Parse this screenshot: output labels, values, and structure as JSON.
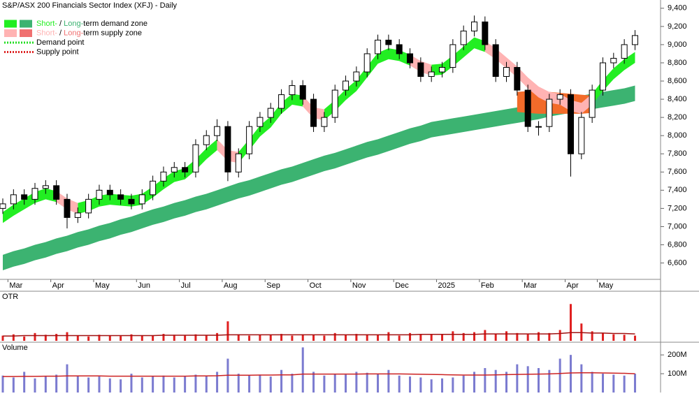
{
  "chart_data": [
    {
      "type": "candlestick",
      "title": "S&P/ASX 200 Financials Sector Index (XFJ) - Daily",
      "categories": [
        null,
        "Mar",
        null,
        null,
        null,
        "Apr",
        null,
        null,
        null,
        "May",
        null,
        null,
        null,
        "Jun",
        null,
        null,
        null,
        "Jul",
        null,
        null,
        null,
        "Aug",
        null,
        null,
        null,
        "Sep",
        null,
        null,
        null,
        "Oct",
        null,
        null,
        null,
        "Nov",
        null,
        null,
        null,
        "Dec",
        null,
        null,
        null,
        "2025",
        null,
        null,
        null,
        "Feb",
        null,
        null,
        null,
        "Mar",
        null,
        null,
        null,
        "Apr",
        null,
        null,
        "May",
        null,
        null,
        null
      ],
      "open": [
        7200,
        7250,
        7350,
        7300,
        7420,
        7450,
        7300,
        7100,
        7150,
        7300,
        7400,
        7350,
        7300,
        7250,
        7350,
        7500,
        7600,
        7650,
        7600,
        7900,
        8000,
        8100,
        7600,
        7800,
        8100,
        8200,
        8300,
        8450,
        8550,
        8400,
        8100,
        8200,
        8500,
        8600,
        8700,
        8900,
        9050,
        9000,
        8900,
        8800,
        8650,
        8700,
        8750,
        9000,
        9150,
        9250,
        9000,
        8650,
        8750,
        8500,
        8100,
        8100,
        8400,
        8450,
        7800,
        8200,
        8500,
        8800,
        8850,
        9000
      ],
      "high": [
        7310,
        7410,
        7410,
        7480,
        7510,
        7510,
        7360,
        7210,
        7360,
        7460,
        7460,
        7410,
        7360,
        7410,
        7560,
        7660,
        7710,
        7710,
        7960,
        8060,
        8180,
        8160,
        7860,
        8160,
        8260,
        8360,
        8510,
        8610,
        8610,
        8460,
        8260,
        8560,
        8660,
        8760,
        8960,
        9110,
        9110,
        9060,
        8960,
        8860,
        8760,
        8810,
        9060,
        9210,
        9320,
        9310,
        9060,
        8810,
        8810,
        8560,
        8160,
        8460,
        8510,
        8510,
        8260,
        8560,
        8860,
        8910,
        9060,
        9160
      ],
      "low": [
        7140,
        7190,
        7240,
        7240,
        7360,
        7240,
        6980,
        7040,
        7090,
        7240,
        7290,
        7240,
        7190,
        7190,
        7290,
        7440,
        7540,
        7540,
        7540,
        7840,
        7940,
        7500,
        7540,
        7740,
        8040,
        8140,
        8240,
        8390,
        8340,
        8040,
        8040,
        8140,
        8440,
        8540,
        8640,
        8840,
        8940,
        8840,
        8740,
        8590,
        8590,
        8640,
        8690,
        8940,
        9090,
        8940,
        8590,
        8590,
        8440,
        8040,
        8000,
        8040,
        8340,
        7550,
        7740,
        8140,
        8440,
        8740,
        8790,
        8940
      ],
      "close": [
        7250,
        7350,
        7300,
        7420,
        7450,
        7300,
        7100,
        7150,
        7300,
        7400,
        7350,
        7300,
        7250,
        7350,
        7500,
        7600,
        7650,
        7600,
        7900,
        8000,
        8100,
        7600,
        7800,
        8100,
        8200,
        8300,
        8450,
        8550,
        8400,
        8100,
        8200,
        8500,
        8600,
        8700,
        8900,
        9050,
        9000,
        8900,
        8800,
        8650,
        8700,
        8750,
        9000,
        9150,
        9250,
        9000,
        8650,
        8750,
        8500,
        8100,
        8100,
        8400,
        8450,
        7800,
        8200,
        8500,
        8800,
        8850,
        9000,
        9100
      ],
      "zones": [
        {
          "color": "#3cb371",
          "upper": [
            6690,
            6730,
            6760,
            6800,
            6830,
            6870,
            6900,
            6940,
            6970,
            7010,
            7040,
            7080,
            7110,
            7150,
            7190,
            7220,
            7260,
            7290,
            7330,
            7360,
            7400,
            7440,
            7480,
            7510,
            7550,
            7590,
            7630,
            7660,
            7700,
            7740,
            7780,
            7810,
            7850,
            7890,
            7930,
            7960,
            8000,
            8040,
            8080,
            8110,
            8150,
            8170,
            8190,
            8210,
            8230,
            8250,
            8270,
            8290,
            8310,
            8330,
            8350,
            8380,
            8400,
            8420,
            8440,
            8460,
            8480,
            8500,
            8520,
            8550
          ],
          "lower": [
            6520,
            6560,
            6590,
            6630,
            6660,
            6700,
            6730,
            6770,
            6800,
            6840,
            6870,
            6910,
            6940,
            6980,
            7020,
            7050,
            7090,
            7120,
            7160,
            7190,
            7230,
            7270,
            7310,
            7340,
            7380,
            7420,
            7460,
            7490,
            7530,
            7570,
            7610,
            7640,
            7680,
            7720,
            7760,
            7790,
            7830,
            7870,
            7910,
            7940,
            7980,
            8000,
            8020,
            8040,
            8060,
            8080,
            8100,
            8120,
            8140,
            8160,
            8180,
            8210,
            8230,
            8250,
            8270,
            8290,
            8310,
            8330,
            8350,
            8380
          ]
        },
        {
          "color": "#f26b2a",
          "upper": [
            null,
            null,
            null,
            null,
            null,
            null,
            null,
            null,
            null,
            null,
            null,
            null,
            null,
            null,
            null,
            null,
            null,
            null,
            null,
            null,
            null,
            null,
            null,
            null,
            null,
            null,
            null,
            null,
            null,
            null,
            null,
            null,
            null,
            null,
            null,
            null,
            null,
            null,
            null,
            null,
            null,
            null,
            null,
            null,
            null,
            null,
            null,
            null,
            8480,
            8490,
            8480,
            8480,
            8470,
            8460,
            8450,
            8440,
            null,
            null,
            null,
            null
          ],
          "lower": [
            null,
            null,
            null,
            null,
            null,
            null,
            null,
            null,
            null,
            null,
            null,
            null,
            null,
            null,
            null,
            null,
            null,
            null,
            null,
            null,
            null,
            null,
            null,
            null,
            null,
            null,
            null,
            null,
            null,
            null,
            null,
            null,
            null,
            null,
            null,
            null,
            null,
            null,
            null,
            null,
            null,
            null,
            null,
            null,
            null,
            null,
            null,
            null,
            8260,
            8250,
            8240,
            8240,
            8240,
            8240,
            8240,
            8250,
            null,
            null,
            null,
            null
          ]
        },
        {
          "color": "#22ee22",
          "upper": [
            7160,
            7240,
            7310,
            7380,
            7420,
            7390,
            null,
            7260,
            7290,
            7340,
            7360,
            7350,
            7340,
            7360,
            7440,
            7530,
            7610,
            7640,
            7740,
            7860,
            7960,
            null,
            7820,
            7960,
            8110,
            8210,
            8360,
            8460,
            8440,
            null,
            8290,
            8390,
            8510,
            8610,
            8760,
            8910,
            8960,
            8940,
            8890,
            null,
            8780,
            8790,
            8880,
            8980,
            9080,
            9040,
            null,
            null,
            null,
            null,
            null,
            null,
            null,
            null,
            null,
            8460,
            8610,
            8740,
            8840,
            8920
          ],
          "lower": [
            7040,
            7120,
            7190,
            7260,
            7300,
            7270,
            null,
            7140,
            7170,
            7220,
            7240,
            7230,
            7220,
            7240,
            7320,
            7410,
            7490,
            7520,
            7620,
            7740,
            7840,
            null,
            7700,
            7840,
            7990,
            8090,
            8240,
            8340,
            8320,
            null,
            8170,
            8270,
            8390,
            8490,
            8640,
            8790,
            8840,
            8820,
            8770,
            null,
            8660,
            8670,
            8760,
            8860,
            8960,
            8920,
            null,
            null,
            null,
            null,
            null,
            null,
            null,
            null,
            null,
            8340,
            8490,
            8620,
            8720,
            8800
          ]
        },
        {
          "color": "#ffb3b3",
          "upper": [
            null,
            null,
            null,
            null,
            null,
            7390,
            7310,
            7260,
            null,
            null,
            null,
            null,
            null,
            null,
            null,
            null,
            null,
            null,
            null,
            null,
            7960,
            7840,
            7820,
            null,
            null,
            null,
            null,
            null,
            8440,
            8310,
            8290,
            null,
            null,
            null,
            null,
            null,
            null,
            null,
            8890,
            8820,
            8780,
            null,
            null,
            null,
            null,
            9040,
            8960,
            8860,
            8760,
            8640,
            8540,
            8480,
            8460,
            8390,
            8360,
            8460,
            null,
            null,
            null,
            null
          ],
          "lower": [
            null,
            null,
            null,
            null,
            null,
            7270,
            7190,
            7140,
            null,
            null,
            null,
            null,
            null,
            null,
            null,
            null,
            null,
            null,
            null,
            null,
            7840,
            7720,
            7700,
            null,
            null,
            null,
            null,
            null,
            8320,
            8190,
            8170,
            null,
            null,
            null,
            null,
            null,
            null,
            null,
            8770,
            8700,
            8660,
            null,
            null,
            null,
            null,
            8920,
            8840,
            8740,
            8640,
            8520,
            8420,
            8360,
            8340,
            8270,
            8240,
            8340,
            null,
            null,
            null,
            null
          ]
        }
      ],
      "legend": [
        {
          "swatches": [
            "#22ee22",
            "#3cb371"
          ],
          "parts": [
            "Short-",
            " / ",
            "Long-",
            "term demand zone"
          ]
        },
        {
          "swatches": [
            "#ffb3b3",
            "#f07070"
          ],
          "parts": [
            "Short-",
            " / ",
            "Long-",
            "term supply zone"
          ]
        },
        {
          "line": "#22dd22",
          "parts": [
            "Demand point"
          ]
        },
        {
          "line": "#dd2222",
          "parts": [
            "Supply point"
          ]
        }
      ],
      "ylim": [
        6420,
        9460
      ],
      "yticks": [
        {
          "value": 6600,
          "label": "6,600"
        },
        {
          "value": 6800,
          "label": "6,800"
        },
        {
          "value": 7000,
          "label": "7,000"
        },
        {
          "value": 7200,
          "label": "7,200"
        },
        {
          "value": 7400,
          "label": "7,400"
        },
        {
          "value": 7600,
          "label": "7,600"
        },
        {
          "value": 7800,
          "label": "7,800"
        },
        {
          "value": 8000,
          "label": "8,000"
        },
        {
          "value": 8200,
          "label": "8,200"
        },
        {
          "value": 8400,
          "label": "8,400"
        },
        {
          "value": 8600,
          "label": "8,600"
        },
        {
          "value": 8800,
          "label": "8,800"
        },
        {
          "value": 9000,
          "label": "9,000"
        },
        {
          "value": 9200,
          "label": "9,200"
        },
        {
          "value": 9400,
          "label": "9,400"
        }
      ]
    },
    {
      "type": "bar",
      "title": "OTR",
      "title_color": "#dd2222",
      "color": "#e02020",
      "average_color": "#a01010",
      "values": [
        12,
        15,
        10,
        18,
        14,
        16,
        20,
        12,
        10,
        14,
        12,
        11,
        15,
        13,
        12,
        16,
        14,
        12,
        15,
        13,
        18,
        45,
        15,
        12,
        14,
        13,
        16,
        12,
        15,
        14,
        12,
        18,
        13,
        16,
        15,
        14,
        20,
        12,
        18,
        15,
        14,
        16,
        22,
        18,
        20,
        25,
        16,
        22,
        18,
        15,
        20,
        18,
        25,
        85,
        40,
        22,
        18,
        15,
        14,
        12
      ],
      "average": [
        11,
        11,
        12,
        12,
        12,
        12,
        12,
        12,
        12,
        12,
        12,
        12,
        12,
        12,
        12,
        13,
        13,
        13,
        13,
        13,
        13,
        14,
        14,
        14,
        14,
        14,
        14,
        14,
        14,
        14,
        14,
        14,
        14,
        14,
        14,
        14,
        14,
        14,
        14,
        15,
        15,
        15,
        15,
        15,
        15,
        16,
        16,
        16,
        16,
        16,
        16,
        16,
        17,
        19,
        19,
        18,
        18,
        17,
        17,
        16
      ],
      "ylim": [
        0,
        100
      ],
      "yticks": []
    },
    {
      "type": "bar",
      "title": "Volume",
      "title_color": "#7b7bd0",
      "color": "#7b7bd0",
      "average_color": "#cc2222",
      "values": [
        90000000,
        80000000,
        110000000,
        75000000,
        85000000,
        95000000,
        150000000,
        90000000,
        80000000,
        85000000,
        75000000,
        70000000,
        100000000,
        80000000,
        85000000,
        90000000,
        80000000,
        85000000,
        95000000,
        88000000,
        110000000,
        180000000,
        100000000,
        90000000,
        95000000,
        85000000,
        120000000,
        100000000,
        240000000,
        110000000,
        90000000,
        100000000,
        95000000,
        110000000,
        105000000,
        100000000,
        120000000,
        90000000,
        85000000,
        80000000,
        70000000,
        75000000,
        80000000,
        90000000,
        110000000,
        130000000,
        120000000,
        110000000,
        150000000,
        140000000,
        130000000,
        120000000,
        180000000,
        200000000,
        150000000,
        110000000,
        100000000,
        95000000,
        90000000,
        100000000
      ],
      "average": [
        85000000,
        85000000,
        86000000,
        86000000,
        87000000,
        87000000,
        88000000,
        88000000,
        88000000,
        88000000,
        87000000,
        87000000,
        87000000,
        87000000,
        87000000,
        87000000,
        87000000,
        87000000,
        88000000,
        88000000,
        89000000,
        92000000,
        92000000,
        92000000,
        93000000,
        93000000,
        94000000,
        94000000,
        98000000,
        98000000,
        98000000,
        98000000,
        98000000,
        98000000,
        99000000,
        99000000,
        99000000,
        99000000,
        98000000,
        97000000,
        96000000,
        95000000,
        94000000,
        93000000,
        93000000,
        93000000,
        94000000,
        95000000,
        96000000,
        97000000,
        98000000,
        99000000,
        101000000,
        104000000,
        105000000,
        105000000,
        104000000,
        103000000,
        102000000,
        100000000
      ],
      "ylim": [
        0,
        260000000
      ],
      "yticks": [
        {
          "value": 100000000,
          "label": "100M"
        },
        {
          "value": 200000000,
          "label": "200M"
        }
      ]
    }
  ]
}
